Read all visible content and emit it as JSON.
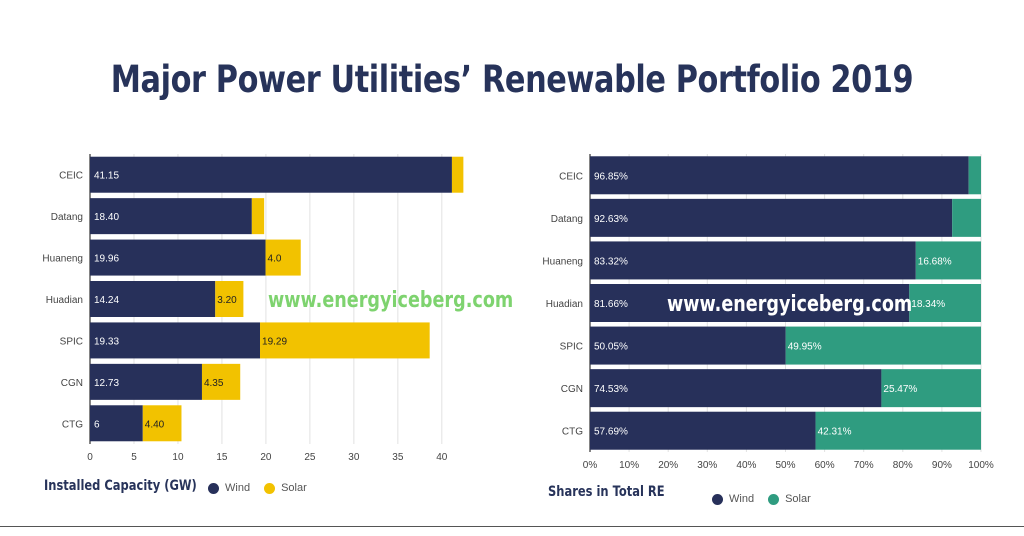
{
  "title": "Major Power Utilities’ Renewable Portfolio 2019",
  "watermark_left": "www.energyiceberg.com",
  "watermark_right": "www.energyiceberg.com",
  "colors": {
    "wind": "#27305a",
    "solar_left": "#f2c200",
    "solar_right": "#2f9c80",
    "title": "#27335a",
    "watermark_left": "#7ed36f",
    "watermark_right": "#ffffff"
  },
  "chart_data": [
    {
      "type": "bar",
      "orientation": "horizontal",
      "stacked": true,
      "xlabel": "Installed Capacity  (GW)",
      "xlim": [
        0,
        44
      ],
      "xticks": [
        "0",
        "5",
        "10",
        "15",
        "20",
        "25",
        "30",
        "35",
        "40"
      ],
      "categories": [
        "CEIC",
        "Datang",
        "Huaneng",
        "Huadian",
        "SPIC",
        "CGN",
        "CTG"
      ],
      "series": [
        {
          "name": "Wind",
          "values": [
            41.15,
            18.4,
            19.96,
            14.24,
            19.33,
            12.73,
            6
          ],
          "labels": [
            "41.15",
            "18.40",
            "19.96",
            "14.24",
            "19.33",
            "12.73",
            "6"
          ]
        },
        {
          "name": "Solar",
          "values": [
            1.3,
            1.4,
            4.0,
            3.2,
            19.29,
            4.35,
            4.4
          ],
          "labels": [
            "",
            "",
            "4.0",
            "3.20",
            "19.29",
            "4.35",
            "4.40"
          ]
        }
      ],
      "legend_position": "bottom",
      "grid": true
    },
    {
      "type": "bar",
      "orientation": "horizontal",
      "stacked": true,
      "percent": true,
      "xlabel": "Shares in Total RE",
      "xlim": [
        0,
        100
      ],
      "xticks": [
        "0%",
        "10%",
        "20%",
        "30%",
        "40%",
        "50%",
        "60%",
        "70%",
        "80%",
        "90%",
        "100%"
      ],
      "categories": [
        "CEIC",
        "Datang",
        "Huaneng",
        "Huadian",
        "SPIC",
        "CGN",
        "CTG"
      ],
      "series": [
        {
          "name": "Wind",
          "values": [
            96.85,
            92.63,
            83.32,
            81.66,
            50.05,
            74.53,
            57.69
          ],
          "labels": [
            "96.85%",
            "92.63%",
            "83.32%",
            "81.66%",
            "50.05%",
            "74.53%",
            "57.69%"
          ]
        },
        {
          "name": "Solar",
          "values": [
            3.15,
            7.37,
            16.68,
            18.34,
            49.95,
            25.47,
            42.31
          ],
          "labels": [
            "",
            "",
            "16.68%",
            "18.34%",
            "49.95%",
            "25.47%",
            "42.31%"
          ]
        }
      ],
      "legend_position": "bottom",
      "grid": true
    }
  ]
}
